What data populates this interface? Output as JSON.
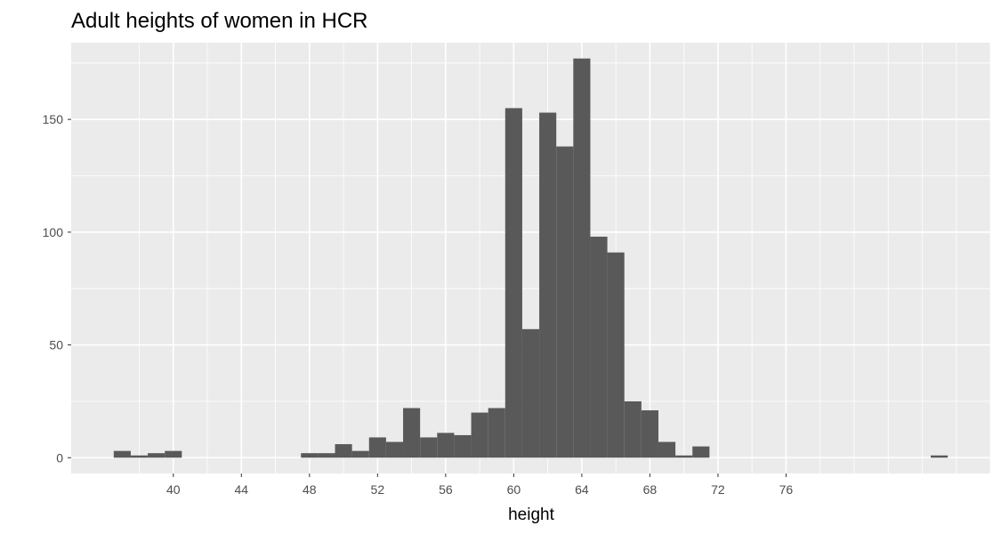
{
  "chart_data": {
    "type": "bar",
    "title": "Adult heights of women in HCR",
    "xlabel": "height",
    "ylabel": "",
    "xlim": [
      34,
      88
    ],
    "ylim": [
      -7,
      184
    ],
    "grid": true,
    "x_ticks": [
      40,
      44,
      48,
      52,
      56,
      60,
      64,
      68,
      72,
      76
    ],
    "y_ticks": [
      0,
      50,
      100,
      150
    ],
    "bin_width": 1,
    "bins": [
      {
        "x0": 36.5,
        "x1": 37.5,
        "count": 3
      },
      {
        "x0": 37.5,
        "x1": 38.5,
        "count": 1
      },
      {
        "x0": 38.5,
        "x1": 39.5,
        "count": 2
      },
      {
        "x0": 39.5,
        "x1": 40.5,
        "count": 3
      },
      {
        "x0": 40.5,
        "x1": 41.5,
        "count": 0
      },
      {
        "x0": 41.5,
        "x1": 42.5,
        "count": 0
      },
      {
        "x0": 42.5,
        "x1": 43.5,
        "count": 0
      },
      {
        "x0": 43.5,
        "x1": 44.5,
        "count": 0
      },
      {
        "x0": 44.5,
        "x1": 45.5,
        "count": 0
      },
      {
        "x0": 45.5,
        "x1": 46.5,
        "count": 0
      },
      {
        "x0": 46.5,
        "x1": 47.5,
        "count": 0
      },
      {
        "x0": 47.5,
        "x1": 48.5,
        "count": 2
      },
      {
        "x0": 48.5,
        "x1": 49.5,
        "count": 2
      },
      {
        "x0": 49.5,
        "x1": 50.5,
        "count": 6
      },
      {
        "x0": 50.5,
        "x1": 51.5,
        "count": 3
      },
      {
        "x0": 51.5,
        "x1": 52.5,
        "count": 9
      },
      {
        "x0": 52.5,
        "x1": 53.5,
        "count": 7
      },
      {
        "x0": 53.5,
        "x1": 54.5,
        "count": 22
      },
      {
        "x0": 54.5,
        "x1": 55.5,
        "count": 9
      },
      {
        "x0": 55.5,
        "x1": 56.5,
        "count": 11
      },
      {
        "x0": 56.5,
        "x1": 57.5,
        "count": 10
      },
      {
        "x0": 57.5,
        "x1": 58.5,
        "count": 20
      },
      {
        "x0": 58.5,
        "x1": 59.5,
        "count": 22
      },
      {
        "x0": 59.5,
        "x1": 60.5,
        "count": 155
      },
      {
        "x0": 60.5,
        "x1": 61.5,
        "count": 57
      },
      {
        "x0": 61.5,
        "x1": 62.5,
        "count": 153
      },
      {
        "x0": 62.5,
        "x1": 63.5,
        "count": 138
      },
      {
        "x0": 63.5,
        "x1": 64.5,
        "count": 177
      },
      {
        "x0": 64.5,
        "x1": 65.5,
        "count": 98
      },
      {
        "x0": 65.5,
        "x1": 66.5,
        "count": 91
      },
      {
        "x0": 66.5,
        "x1": 67.5,
        "count": 25
      },
      {
        "x0": 67.5,
        "x1": 68.5,
        "count": 21
      },
      {
        "x0": 68.5,
        "x1": 69.5,
        "count": 7
      },
      {
        "x0": 69.5,
        "x1": 70.5,
        "count": 1
      },
      {
        "x0": 70.5,
        "x1": 71.5,
        "count": 5
      },
      {
        "x0": 84.5,
        "x1": 85.5,
        "count": 1
      }
    ],
    "colors": {
      "bar_fill": "#595959",
      "panel_background": "#ebebeb",
      "grid_line": "#ffffff",
      "tick_label": "#4d4d4d",
      "tick_mark": "#333333"
    }
  }
}
